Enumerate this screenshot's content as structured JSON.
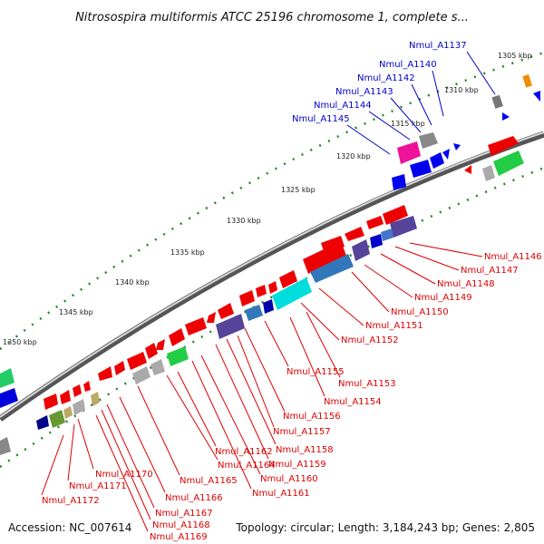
{
  "title": "Nitrosospira multiformis ATCC 25196 chromosome 1, complete s...",
  "footer": {
    "accession": "Accession: NC_007614",
    "summary": "Topology: circular; Length: 3,184,243 bp; Genes: 2,805"
  },
  "colors": {
    "highlight_label": "#0000cc",
    "neighbor_label": "#dd0000",
    "backbone": "#888888",
    "tick": "#228822"
  },
  "scale_labels": [
    "1305 kbp",
    "1310 kbp",
    "1315 kbp",
    "1320 kbp",
    "1325 kbp",
    "1330 kbp",
    "1335 kbp",
    "1340 kbp",
    "1345 kbp",
    "1350 kbp"
  ],
  "highlighted_genes": [
    "Nmul_A1137",
    "Nmul_A1140",
    "Nmul_A1142",
    "Nmul_A1143",
    "Nmul_A1144",
    "Nmul_A1145"
  ],
  "neighbor_genes": [
    "Nmul_A1146",
    "Nmul_A1147",
    "Nmul_A1148",
    "Nmul_A1149",
    "Nmul_A1150",
    "Nmul_A1151",
    "Nmul_A1152",
    "Nmul_A1153",
    "Nmul_A1154",
    "Nmul_A1155",
    "Nmul_A1156",
    "Nmul_A1157",
    "Nmul_A1158",
    "Nmul_A1159",
    "Nmul_A1160",
    "Nmul_A1161",
    "Nmul_A1162",
    "Nmul_A1164",
    "Nmul_A1165",
    "Nmul_A1166",
    "Nmul_A1167",
    "Nmul_A1168",
    "Nmul_A1169",
    "Nmul_A1170",
    "Nmul_A1171",
    "Nmul_A1172"
  ]
}
